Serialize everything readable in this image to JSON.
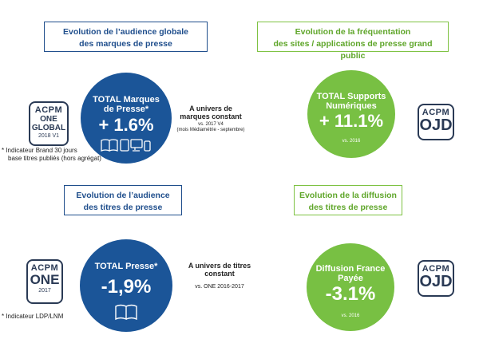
{
  "panels": [
    {
      "heading": [
        "Evolution de l’audience globale",
        "des marques de presse"
      ],
      "circle_title": [
        "TOTAL Marques",
        "de Presse*"
      ],
      "circle_value": "+ 1.6%",
      "circle_note": "",
      "side_title": [
        "A univers de",
        "marques constant"
      ],
      "side_sub": [
        "vs. 2017 V4",
        "(mois Médiamétrie - septembre)"
      ],
      "logo": [
        "ACPM",
        "ONE",
        "GLOBAL",
        "2018 V1"
      ],
      "footnote": [
        "* Indicateur Brand 30 jours",
        "base titres publiés (hors agrégat)"
      ]
    },
    {
      "heading": [
        "Evolution de la fréquentation",
        "des sites / applications de presse grand public"
      ],
      "circle_title": [
        "TOTAL Supports",
        "Numériques"
      ],
      "circle_value": "+ 11.1%",
      "circle_note": "vs. 2016",
      "logo": [
        "ACPM",
        "OJD"
      ]
    },
    {
      "heading": [
        "Evolution de l’audience",
        "des titres de presse"
      ],
      "circle_title": [
        "TOTAL Presse*"
      ],
      "circle_value": "-1,9%",
      "circle_note": "",
      "side_title": [
        "A univers de titres",
        "constant"
      ],
      "side_sub": [
        "vs. ONE 2016-2017"
      ],
      "logo": [
        "ACPM",
        "ONE",
        "2017"
      ],
      "footnote": [
        "* Indicateur LDP/LNM"
      ]
    },
    {
      "heading": [
        "Evolution de la diffusion",
        "des titres de presse"
      ],
      "circle_title": [
        "Diffusion France",
        "Payée"
      ],
      "circle_value": "-3.1%",
      "circle_note": "vs. 2016",
      "logo": [
        "ACPM",
        "OJD"
      ]
    }
  ],
  "colors": {
    "blue": "#1b5598",
    "green": "#78c043",
    "logo": "#2a3a55"
  },
  "icons": [
    "book-icon",
    "tablet-icon",
    "monitor-icon",
    "phone-icon"
  ]
}
